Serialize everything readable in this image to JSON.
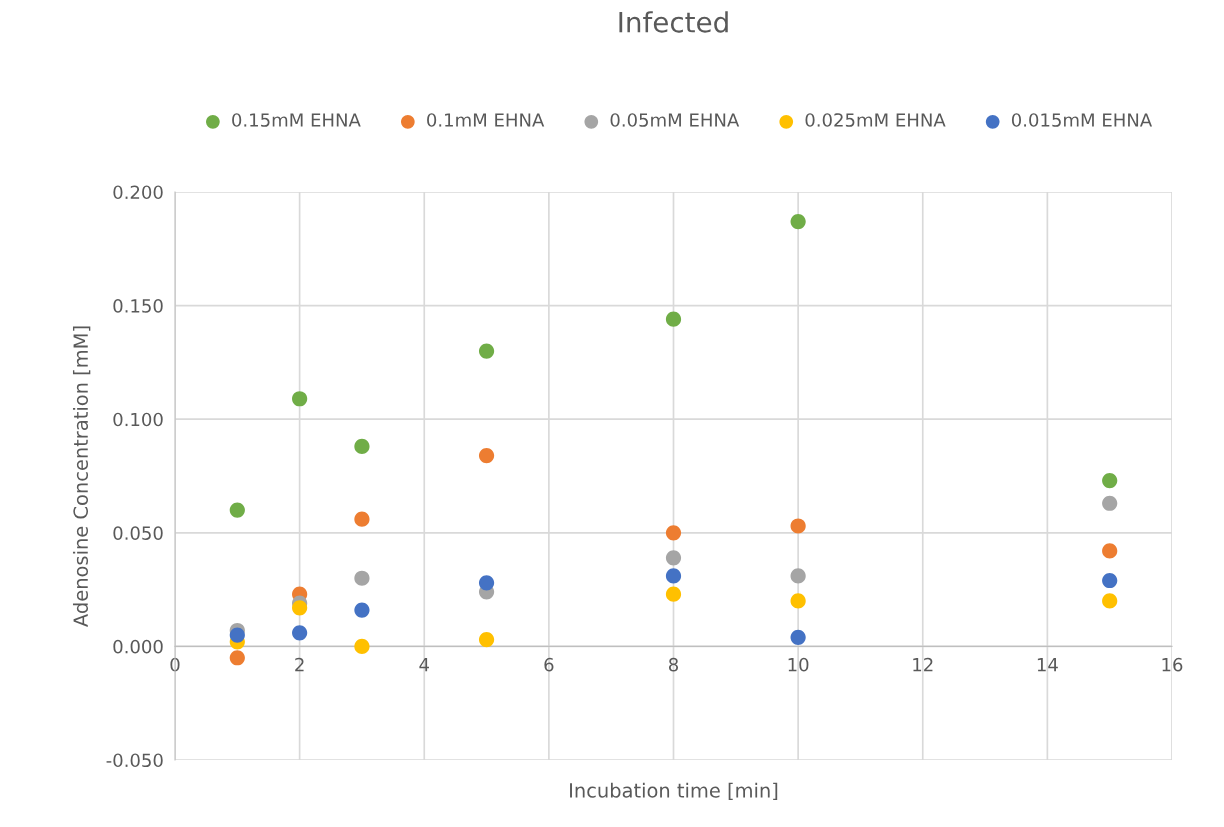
{
  "chart_data": {
    "type": "scatter",
    "title": "Infected",
    "xlabel": "Incubation time [min]",
    "ylabel": "Adenosine Concentration [mM]",
    "x": [
      1,
      2,
      3,
      5,
      8,
      10,
      15
    ],
    "series": [
      {
        "name": "0.15mM EHNA",
        "color": "#70ad47",
        "values": [
          0.06,
          0.109,
          0.088,
          0.13,
          0.144,
          0.187,
          0.073
        ]
      },
      {
        "name": "0.1mM EHNA",
        "color": "#ed7d31",
        "values": [
          -0.005,
          0.023,
          0.056,
          0.084,
          0.05,
          0.053,
          0.042
        ]
      },
      {
        "name": "0.05mM EHNA",
        "color": "#a5a5a5",
        "values": [
          0.007,
          0.019,
          0.03,
          0.024,
          0.039,
          0.031,
          0.063
        ]
      },
      {
        "name": "0.025mM EHNA",
        "color": "#ffc000",
        "values": [
          0.002,
          0.017,
          0.0,
          0.003,
          0.023,
          0.02,
          0.02
        ]
      },
      {
        "name": "0.015mM EHNA",
        "color": "#4472c4",
        "values": [
          0.005,
          0.006,
          0.016,
          0.028,
          0.031,
          0.004,
          0.029
        ]
      }
    ],
    "xlim": [
      0,
      16
    ],
    "xticks": [
      0,
      2,
      4,
      6,
      8,
      10,
      12,
      14,
      16
    ],
    "ylim": [
      -0.05,
      0.2
    ],
    "yticks": [
      {
        "value": -0.05,
        "label": "-0.050"
      },
      {
        "value": 0,
        "label": "0.000"
      },
      {
        "value": 0.05,
        "label": "0.050"
      },
      {
        "value": 0.1,
        "label": "0.100"
      },
      {
        "value": 0.15,
        "label": "0.150"
      },
      {
        "value": 0.2,
        "label": "0.200"
      }
    ],
    "grid": true,
    "legend": "top",
    "marker": "circle"
  }
}
